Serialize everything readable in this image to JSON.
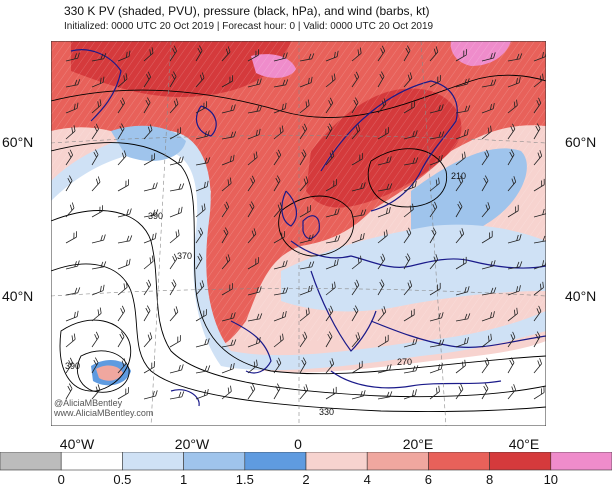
{
  "header": {
    "title": "330 K PV (shaded, PVU), pressure (black, hPa), and wind (barbs, kt)",
    "subtitle": "Initialized: 0000 UTC 20 Oct 2019 | Forecast hour: 0 | Valid: 0000 UTC 20 Oct 2019"
  },
  "map": {
    "lat_labels": {
      "left_60": "60°N",
      "left_40": "40°N",
      "right_60": "60°N",
      "right_40": "40°N"
    },
    "lon_labels": [
      "40°W",
      "20°W",
      "0",
      "20°E",
      "40°E"
    ],
    "contour_labels": [
      "390",
      "370",
      "390",
      "270",
      "330",
      "210"
    ],
    "credit": [
      "@AliciaMBentley",
      "www.AliciaMBentley.com"
    ],
    "colors": {
      "pv_low": "#ffffff",
      "pv_blue_light": "#cfe1f5",
      "pv_blue": "#9fc4ec",
      "pv_blue_dark": "#5f9be0",
      "pv_pink_light": "#f7d3cf",
      "pv_pink": "#f0a79f",
      "pv_red": "#e8615a",
      "pv_red_dark": "#d53a3c",
      "pv_magenta": "#ef8ccb",
      "coast": "#1a1a8a",
      "contour": "#000000"
    }
  },
  "colorbar": {
    "labels": [
      "0",
      "0.5",
      "1",
      "1.5",
      "2",
      "4",
      "6",
      "8",
      "10"
    ],
    "colors": [
      "#bcbcbc",
      "#ffffff",
      "#cfe1f5",
      "#9fc4ec",
      "#5f9be0",
      "#f7d3cf",
      "#f0a79f",
      "#e8615a",
      "#d53a3c",
      "#ef8ccb"
    ]
  }
}
